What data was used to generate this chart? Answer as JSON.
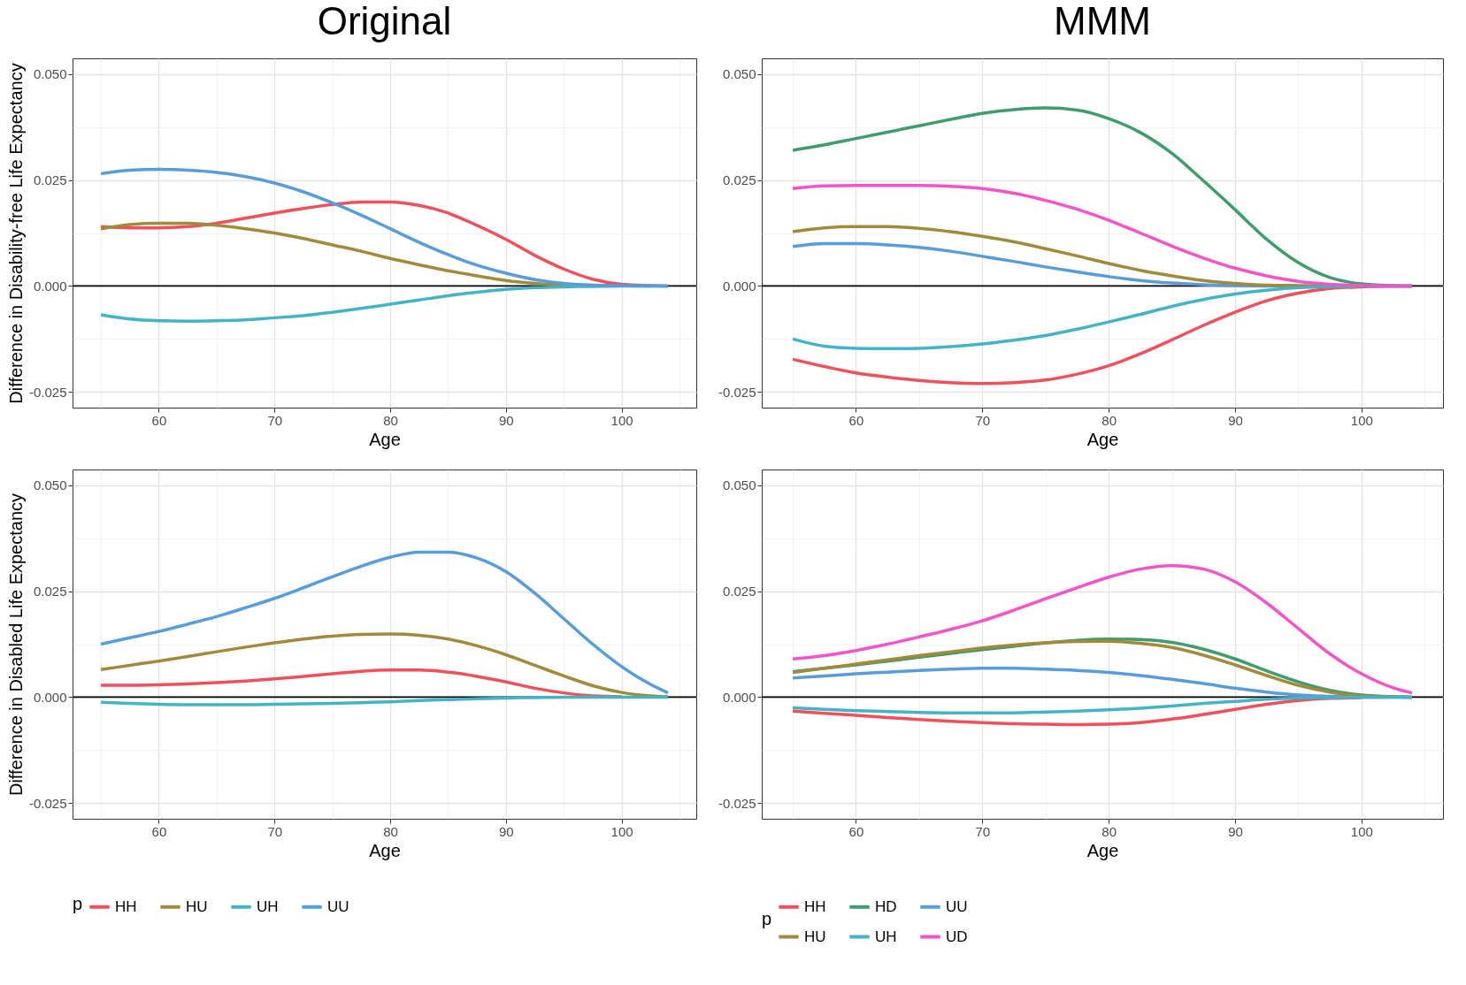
{
  "chart_data": [
    {
      "type": "line",
      "title": "Original",
      "xlabel": "Age",
      "ylabel": "Difference in Disability-free Life Expectancy",
      "x": [
        55,
        57.5,
        60,
        62.5,
        65,
        67.5,
        70,
        72.5,
        75,
        77.5,
        80,
        82.5,
        85,
        87.5,
        90,
        92.5,
        95,
        97.5,
        100,
        102.5,
        104
      ],
      "xlim": [
        52.55,
        106.45
      ],
      "ylim": [
        -0.0287,
        0.0537
      ],
      "xticks": [
        {
          "value": 55,
          "label": null
        },
        60,
        {
          "value": 65,
          "label": null
        },
        70,
        {
          "value": 75,
          "label": null
        },
        80,
        {
          "value": 85,
          "label": null
        },
        90,
        {
          "value": 95,
          "label": null
        },
        100,
        {
          "value": 105,
          "label": null
        }
      ],
      "yticks": [
        {
          "value": -0.025,
          "label": "-0.025"
        },
        {
          "value": -0.0125,
          "label": null
        },
        {
          "value": 0,
          "label": "0.000"
        },
        {
          "value": 0.0125,
          "label": null
        },
        {
          "value": 0.025,
          "label": "0.025"
        },
        {
          "value": 0.0375,
          "label": null
        },
        {
          "value": 0.05,
          "label": "0.050"
        }
      ],
      "grid": true,
      "legend": false,
      "ref_lines": [
        {
          "axis": "y",
          "value": 0,
          "color": "#000000"
        }
      ],
      "series": [
        {
          "color": "#f1505a",
          "values": [
            0.014,
            0.0137,
            0.0137,
            0.014,
            0.0148,
            0.016,
            0.0172,
            0.0183,
            0.0192,
            0.0198,
            0.0198,
            0.019,
            0.0172,
            0.0143,
            0.011,
            0.0072,
            0.004,
            0.0016,
            0.0004,
            0.0001,
            0
          ]
        },
        {
          "color": "#a3893a",
          "values": [
            0.0135,
            0.0145,
            0.0148,
            0.0148,
            0.0143,
            0.0135,
            0.0125,
            0.0112,
            0.0097,
            0.0082,
            0.0065,
            0.005,
            0.0036,
            0.0024,
            0.0013,
            0.0006,
            0.0002,
            0.0001,
            null,
            null,
            null
          ]
        },
        {
          "color": "#43b4c6",
          "values": [
            -0.0068,
            -0.0078,
            -0.0082,
            -0.0083,
            -0.0082,
            -0.008,
            -0.0075,
            -0.007,
            -0.0062,
            -0.0053,
            -0.0043,
            -0.0033,
            -0.0023,
            -0.0015,
            -0.0008,
            -0.0004,
            -0.0002,
            -0.0001,
            0,
            0,
            0
          ]
        },
        {
          "color": "#579ddb",
          "values": [
            0.0265,
            0.0273,
            0.0275,
            0.0273,
            0.0268,
            0.0258,
            0.0243,
            0.0222,
            0.0196,
            0.0167,
            0.0135,
            0.0103,
            0.0074,
            0.0049,
            0.003,
            0.0015,
            0.0006,
            0.0002,
            0.0001,
            0,
            0
          ]
        }
      ]
    },
    {
      "type": "line",
      "title": "MMM",
      "xlabel": "Age",
      "x": [
        55,
        57.5,
        60,
        62.5,
        65,
        67.5,
        70,
        72.5,
        75,
        77.5,
        80,
        82.5,
        85,
        87.5,
        90,
        92.5,
        95,
        97.5,
        100,
        102.5,
        104
      ],
      "xlim": [
        52.55,
        106.45
      ],
      "ylim": [
        -0.0287,
        0.0537
      ],
      "xticks": [
        {
          "value": 55,
          "label": null
        },
        60,
        {
          "value": 65,
          "label": null
        },
        70,
        {
          "value": 75,
          "label": null
        },
        80,
        {
          "value": 85,
          "label": null
        },
        90,
        {
          "value": 95,
          "label": null
        },
        100,
        {
          "value": 105,
          "label": null
        }
      ],
      "yticks": [
        {
          "value": -0.025,
          "label": "-0.025"
        },
        {
          "value": -0.0125,
          "label": null
        },
        {
          "value": 0,
          "label": "0.000"
        },
        {
          "value": 0.0125,
          "label": null
        },
        {
          "value": 0.025,
          "label": "0.025"
        },
        {
          "value": 0.0375,
          "label": null
        },
        {
          "value": 0.05,
          "label": "0.050"
        }
      ],
      "grid": true,
      "legend": false,
      "ref_lines": [
        {
          "axis": "y",
          "value": 0,
          "color": "#000000"
        }
      ],
      "series": [
        {
          "color": "#f1505a",
          "values": [
            -0.0173,
            -0.019,
            -0.0205,
            -0.0215,
            -0.0223,
            -0.0228,
            -0.023,
            -0.0228,
            -0.0222,
            -0.0208,
            -0.0188,
            -0.016,
            -0.0127,
            -0.0093,
            -0.0062,
            -0.0035,
            -0.0017,
            -0.0006,
            -0.0002,
            0,
            0
          ]
        },
        {
          "color": "#3d9d6b",
          "values": [
            0.032,
            0.0333,
            0.0348,
            0.0363,
            0.0378,
            0.0393,
            0.0407,
            0.0416,
            0.042,
            0.0415,
            0.0395,
            0.0362,
            0.0313,
            0.0248,
            0.018,
            0.011,
            0.0055,
            0.002,
            0.0005,
            0.0001,
            0
          ]
        },
        {
          "color": "#579ddb",
          "values": [
            0.0093,
            0.01,
            0.01,
            0.0097,
            0.0091,
            0.0082,
            0.007,
            0.0058,
            0.0045,
            0.0033,
            0.0022,
            0.0013,
            0.0007,
            0.0003,
            0.0001,
            0,
            0,
            0,
            0,
            0,
            0
          ]
        },
        {
          "color": "#a3893a",
          "values": [
            0.0128,
            0.0137,
            0.014,
            0.014,
            0.0136,
            0.0128,
            0.0117,
            0.0104,
            0.0088,
            0.0071,
            0.0053,
            0.0037,
            0.0024,
            0.0013,
            0.0006,
            0.0002,
            0.0001,
            0,
            0,
            null,
            null
          ]
        },
        {
          "color": "#43b4c6",
          "values": [
            -0.0125,
            -0.0142,
            -0.0147,
            -0.0148,
            -0.0147,
            -0.0143,
            -0.0137,
            -0.0128,
            -0.0117,
            -0.0102,
            -0.0085,
            -0.0067,
            -0.0048,
            -0.0032,
            -0.0019,
            -0.001,
            -0.0004,
            -0.0001,
            0,
            0,
            0
          ]
        },
        {
          "color": "#f553c9",
          "values": [
            0.023,
            0.0236,
            0.0237,
            0.0237,
            0.0237,
            0.0235,
            0.023,
            0.0219,
            0.0202,
            0.0181,
            0.0155,
            0.0125,
            0.0094,
            0.0066,
            0.0042,
            0.0024,
            0.0011,
            0.0004,
            0.0001,
            0,
            0
          ]
        }
      ]
    },
    {
      "type": "line",
      "xlabel": "Age",
      "ylabel": "Difference in Disabled Life Expectancy",
      "x": [
        55,
        57.5,
        60,
        62.5,
        65,
        67.5,
        70,
        72.5,
        75,
        77.5,
        80,
        82.5,
        85,
        87.5,
        90,
        92.5,
        95,
        97.5,
        100,
        102.5,
        104
      ],
      "xlim": [
        52.55,
        106.45
      ],
      "ylim": [
        -0.0287,
        0.0537
      ],
      "xticks": [
        {
          "value": 55,
          "label": null
        },
        60,
        {
          "value": 65,
          "label": null
        },
        70,
        {
          "value": 75,
          "label": null
        },
        80,
        {
          "value": 85,
          "label": null
        },
        90,
        {
          "value": 95,
          "label": null
        },
        100,
        {
          "value": 105,
          "label": null
        }
      ],
      "yticks": [
        {
          "value": -0.025,
          "label": "-0.025"
        },
        {
          "value": -0.0125,
          "label": null
        },
        {
          "value": 0,
          "label": "0.000"
        },
        {
          "value": 0.0125,
          "label": null
        },
        {
          "value": 0.025,
          "label": "0.025"
        },
        {
          "value": 0.0375,
          "label": null
        },
        {
          "value": 0.05,
          "label": "0.050"
        }
      ],
      "grid": true,
      "legend": "bottom",
      "legend_title": "p",
      "ref_lines": [
        {
          "axis": "y",
          "value": 0,
          "color": "#000000"
        }
      ],
      "series": [
        {
          "name": "HH",
          "color": "#f1505a",
          "values": [
            0.0028,
            0.0028,
            0.0029,
            0.0031,
            0.0034,
            0.0038,
            0.0043,
            0.0049,
            0.0055,
            0.0061,
            0.0064,
            0.0064,
            0.0059,
            0.0049,
            0.0036,
            0.0021,
            0.001,
            0.0003,
            0.0001,
            null,
            null
          ]
        },
        {
          "name": "HU",
          "color": "#a3893a",
          "values": [
            0.0065,
            0.0075,
            0.0085,
            0.0096,
            0.0107,
            0.0118,
            0.0128,
            0.0137,
            0.0144,
            0.0148,
            0.0149,
            0.0146,
            0.0137,
            0.0121,
            0.01,
            0.0075,
            0.005,
            0.0027,
            0.0011,
            0.0003,
            0.0001
          ]
        },
        {
          "name": "UH",
          "color": "#43b4c6",
          "values": [
            -0.0012,
            -0.0015,
            -0.0017,
            -0.0018,
            -0.0018,
            -0.0018,
            -0.0017,
            -0.0016,
            -0.0015,
            -0.0013,
            -0.0011,
            -0.0008,
            -0.0006,
            -0.0004,
            -0.0002,
            -0.0001,
            0,
            0,
            0,
            0,
            0
          ]
        },
        {
          "name": "UU",
          "color": "#579ddb",
          "values": [
            0.0125,
            0.014,
            0.0155,
            0.0172,
            0.019,
            0.0211,
            0.0233,
            0.0258,
            0.0284,
            0.0309,
            0.033,
            0.0342,
            0.0342,
            0.0328,
            0.0296,
            0.0245,
            0.0185,
            0.0125,
            0.0072,
            0.003,
            0.001
          ]
        }
      ]
    },
    {
      "type": "line",
      "xlabel": "Age",
      "x": [
        55,
        57.5,
        60,
        62.5,
        65,
        67.5,
        70,
        72.5,
        75,
        77.5,
        80,
        82.5,
        85,
        87.5,
        90,
        92.5,
        95,
        97.5,
        100,
        102.5,
        104
      ],
      "xlim": [
        52.55,
        106.45
      ],
      "ylim": [
        -0.0287,
        0.0537
      ],
      "xticks": [
        {
          "value": 55,
          "label": null
        },
        60,
        {
          "value": 65,
          "label": null
        },
        70,
        {
          "value": 75,
          "label": null
        },
        80,
        {
          "value": 85,
          "label": null
        },
        90,
        {
          "value": 95,
          "label": null
        },
        100,
        {
          "value": 105,
          "label": null
        }
      ],
      "yticks": [
        {
          "value": -0.025,
          "label": "-0.025"
        },
        {
          "value": -0.0125,
          "label": null
        },
        {
          "value": 0,
          "label": "0.000"
        },
        {
          "value": 0.0125,
          "label": null
        },
        {
          "value": 0.025,
          "label": "0.025"
        },
        {
          "value": 0.0375,
          "label": null
        },
        {
          "value": 0.05,
          "label": "0.050"
        }
      ],
      "grid": true,
      "legend": "bottom",
      "legend_title": "p",
      "ref_lines": [
        {
          "axis": "y",
          "value": 0,
          "color": "#000000"
        }
      ],
      "series": [
        {
          "name": "HH",
          "color": "#f1505a",
          "values": [
            -0.0033,
            -0.0038,
            -0.0043,
            -0.0048,
            -0.0053,
            -0.0057,
            -0.006,
            -0.0063,
            -0.0064,
            -0.0065,
            -0.0064,
            -0.006,
            -0.0052,
            -0.0041,
            -0.0029,
            -0.0017,
            -0.0008,
            -0.0003,
            -0.0001,
            null,
            null
          ]
        },
        {
          "name": "HD",
          "color": "#3d9d6b",
          "values": [
            0.006,
            0.0068,
            0.0076,
            0.0085,
            0.0094,
            0.0103,
            0.0112,
            0.012,
            0.0128,
            0.0134,
            0.0137,
            0.0136,
            0.0129,
            0.0113,
            0.009,
            0.0062,
            0.0036,
            0.0016,
            0.0005,
            0.0001,
            0
          ]
        },
        {
          "name": "UU",
          "color": "#579ddb",
          "values": [
            0.0045,
            0.005,
            0.0055,
            0.0059,
            0.0063,
            0.0066,
            0.0068,
            0.0068,
            0.0066,
            0.0063,
            0.0058,
            0.0051,
            0.0042,
            0.0032,
            0.0021,
            0.0012,
            0.0005,
            0.0002,
            0,
            0,
            0
          ]
        },
        {
          "name": "HU",
          "color": "#a3893a",
          "values": [
            0.0058,
            0.0068,
            0.0078,
            0.0088,
            0.0098,
            0.0107,
            0.0116,
            0.0123,
            0.0128,
            0.0131,
            0.0132,
            0.0127,
            0.0117,
            0.0099,
            0.0076,
            0.0051,
            0.0028,
            0.0012,
            0.0003,
            0.0001,
            0
          ]
        },
        {
          "name": "UH",
          "color": "#43b4c6",
          "values": [
            -0.0025,
            -0.0029,
            -0.0032,
            -0.0034,
            -0.0036,
            -0.0037,
            -0.0037,
            -0.0037,
            -0.0035,
            -0.0033,
            -0.003,
            -0.0026,
            -0.0021,
            -0.0015,
            -0.001,
            -0.0005,
            -0.0002,
            -0.0001,
            0,
            0,
            0
          ]
        },
        {
          "name": "UD",
          "color": "#f553c9",
          "values": [
            0.009,
            0.0098,
            0.011,
            0.0125,
            0.0142,
            0.016,
            0.018,
            0.0205,
            0.0232,
            0.0258,
            0.0283,
            0.0302,
            0.031,
            0.0302,
            0.0272,
            0.0222,
            0.0162,
            0.0102,
            0.0055,
            0.0022,
            0.001
          ]
        }
      ]
    }
  ]
}
